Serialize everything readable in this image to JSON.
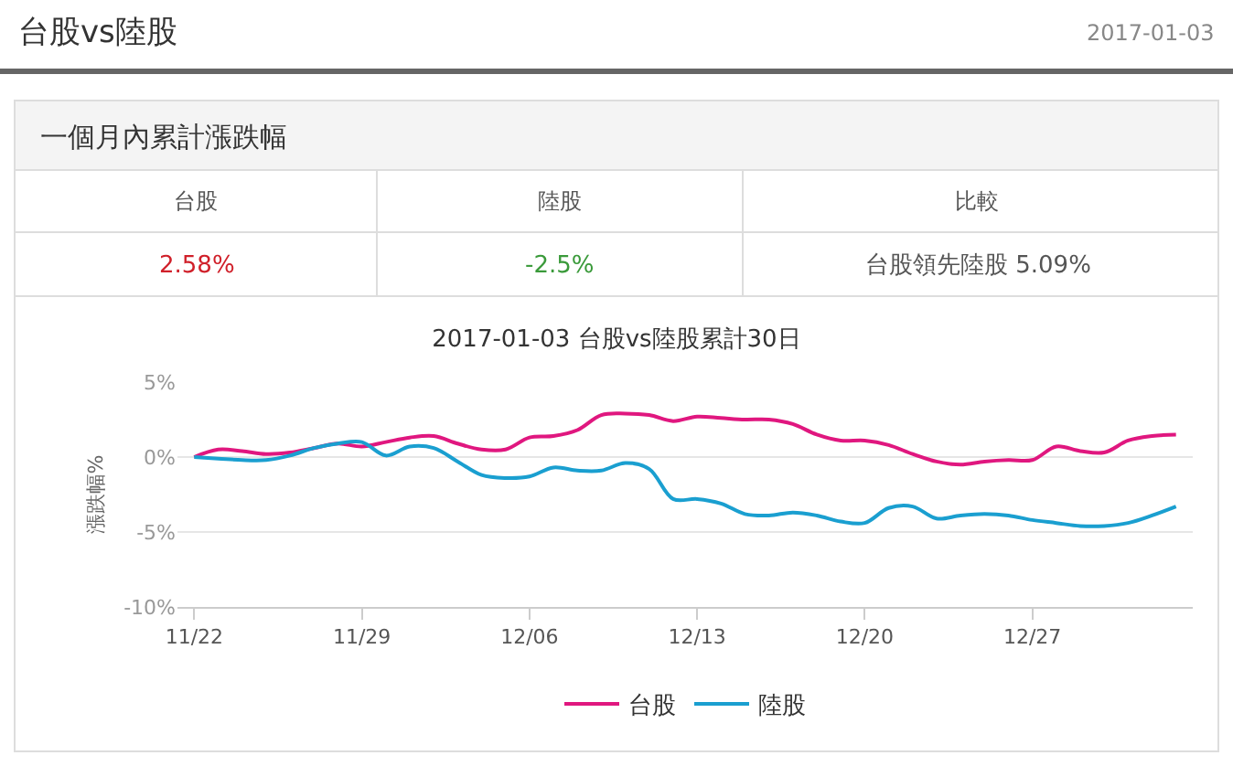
{
  "chart_data": {
    "type": "line",
    "title": "2017-01-03 台股vs陸股累計30日",
    "ylabel": "漲跌幅%",
    "annotations": [
      "台股vs陸股",
      "2017-01-03",
      "一個月內累計漲跌幅",
      "台股",
      "陸股",
      "比較",
      "2.58%",
      "-2.5%",
      "台股領先陸股 5.09%"
    ],
    "categories": [
      "11/22",
      null,
      null,
      null,
      null,
      null,
      null,
      "11/29",
      null,
      null,
      null,
      null,
      null,
      null,
      "12/06",
      null,
      null,
      null,
      null,
      null,
      null,
      "12/13",
      null,
      null,
      null,
      null,
      null,
      null,
      "12/20",
      null,
      null,
      null,
      null,
      null,
      null,
      "12/27",
      null,
      null,
      null,
      null,
      null,
      null
    ],
    "series": [
      {
        "name": "台股",
        "color": "#e0177f",
        "values": [
          0,
          0.5,
          0.4,
          0.2,
          0.3,
          0.6,
          0.9,
          0.7,
          1.0,
          1.3,
          1.4,
          0.9,
          0.5,
          0.5,
          1.3,
          1.4,
          1.8,
          2.8,
          2.9,
          2.8,
          2.4,
          2.7,
          2.6,
          2.5,
          2.5,
          2.2,
          1.5,
          1.1,
          1.1,
          0.8,
          0.2,
          -0.3,
          -0.5,
          -0.3,
          -0.2,
          -0.2,
          0.7,
          0.4,
          0.3,
          1.1,
          1.4,
          1.5
        ]
      },
      {
        "name": "陸股",
        "color": "#1a9fd0",
        "values": [
          0,
          -0.1,
          -0.2,
          -0.2,
          0.1,
          0.6,
          0.9,
          1.0,
          0.1,
          0.7,
          0.6,
          -0.3,
          -1.2,
          -1.4,
          -1.3,
          -0.7,
          -0.9,
          -0.9,
          -0.4,
          -0.8,
          -2.8,
          -2.8,
          -3.1,
          -3.8,
          -3.9,
          -3.7,
          -3.9,
          -4.3,
          -4.4,
          -3.4,
          -3.3,
          -4.1,
          -3.9,
          -3.8,
          -3.9,
          -4.2,
          -4.4,
          -4.6,
          -4.6,
          -4.4,
          -3.9,
          -3.3
        ]
      }
    ],
    "ylim": [
      -10,
      5
    ],
    "yticks": [
      {
        "value": 5,
        "label": "5%"
      },
      {
        "value": 0,
        "label": "0%"
      },
      {
        "value": -5,
        "label": "-5%"
      },
      {
        "value": -10,
        "label": "-10%"
      }
    ],
    "grid": "y",
    "legend": "bottom",
    "marker": "none",
    "line_style": "solid"
  }
}
